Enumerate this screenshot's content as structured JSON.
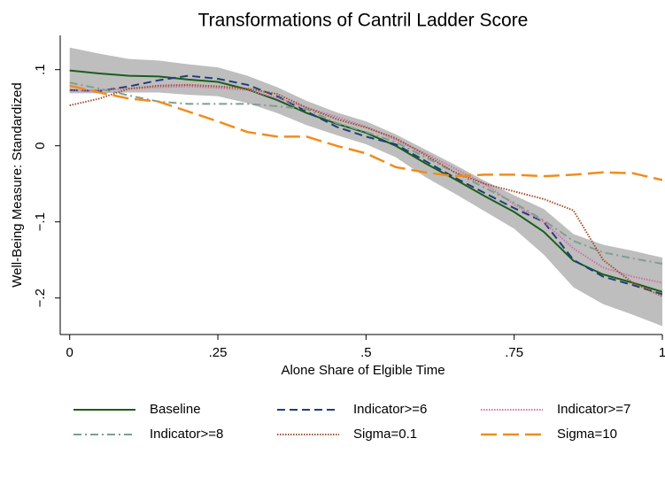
{
  "chart_data": {
    "type": "line",
    "title": "Transformations of Cantril Ladder Score",
    "x_label": "Alone Share of Elgible Time",
    "y_label": "Well-Being Measure: Standardized",
    "xlim": [
      -0.016,
      1.0
    ],
    "ylim": [
      -0.248,
      0.145
    ],
    "xticks": [
      0,
      {
        "value": 0.25,
        "label": ".25"
      },
      {
        "value": 0.5,
        "label": ".5"
      },
      {
        "value": 0.75,
        "label": ".75"
      },
      1
    ],
    "yticks": [
      {
        "value": 0.1,
        "label": ".1"
      },
      0,
      {
        "value": -0.1,
        "label": "−.1"
      },
      {
        "value": -0.2,
        "label": "−.2"
      }
    ],
    "x": [
      0,
      0.05,
      0.1,
      0.15,
      0.2,
      0.25,
      0.3,
      0.35,
      0.4,
      0.45,
      0.5,
      0.55,
      0.6,
      0.65,
      0.7,
      0.75,
      0.8,
      0.85,
      0.9,
      0.95,
      1
    ],
    "band": {
      "color": "#bebebe",
      "upper": [
        0.129,
        0.121,
        0.114,
        0.112,
        0.107,
        0.103,
        0.092,
        0.077,
        0.059,
        0.044,
        0.032,
        0.015,
        -0.005,
        -0.025,
        -0.046,
        -0.065,
        -0.083,
        -0.116,
        -0.13,
        -0.138,
        -0.147
      ],
      "lower": [
        0.069,
        0.069,
        0.07,
        0.07,
        0.067,
        0.065,
        0.056,
        0.043,
        0.027,
        0.014,
        0.002,
        -0.015,
        -0.041,
        -0.063,
        -0.086,
        -0.109,
        -0.143,
        -0.186,
        -0.208,
        -0.222,
        -0.237
      ]
    },
    "series": [
      {
        "name": "Baseline",
        "color": "#1a5e1a",
        "style": "solid",
        "values": [
          0.099,
          0.095,
          0.092,
          0.091,
          0.087,
          0.084,
          0.074,
          0.06,
          0.043,
          0.029,
          0.017,
          0,
          -0.023,
          -0.044,
          -0.066,
          -0.087,
          -0.113,
          -0.151,
          -0.169,
          -0.18,
          -0.192
        ]
      },
      {
        "name": "Indicator>=6",
        "color": "#1f3f7a",
        "style": "dashed",
        "values": [
          0.073,
          0.072,
          0.078,
          0.086,
          0.092,
          0.088,
          0.08,
          0.065,
          0.045,
          0.025,
          0.012,
          0.002,
          -0.02,
          -0.042,
          -0.062,
          -0.082,
          -0.1,
          -0.15,
          -0.172,
          -0.183,
          -0.195
        ]
      },
      {
        "name": "Indicator>=7",
        "color": "#d070a8",
        "style": "dotted",
        "values": [
          0.072,
          0.073,
          0.075,
          0.077,
          0.078,
          0.076,
          0.073,
          0.063,
          0.05,
          0.038,
          0.025,
          0.008,
          -0.01,
          -0.03,
          -0.05,
          -0.077,
          -0.1,
          -0.135,
          -0.16,
          -0.172,
          -0.18
        ]
      },
      {
        "name": "Indicator>=8",
        "color": "#7f9f8f",
        "style": "dash-dot",
        "values": [
          0.083,
          0.075,
          0.066,
          0.058,
          0.055,
          0.055,
          0.055,
          0.052,
          0.048,
          0.03,
          0.018,
          0.005,
          -0.015,
          -0.035,
          -0.055,
          -0.075,
          -0.098,
          -0.125,
          -0.14,
          -0.148,
          -0.155
        ]
      },
      {
        "name": "Sigma=0.1",
        "color": "#a0522d",
        "style": "dotted",
        "values": [
          0.053,
          0.062,
          0.075,
          0.079,
          0.08,
          0.078,
          0.075,
          0.068,
          0.05,
          0.035,
          0.024,
          0.01,
          -0.012,
          -0.035,
          -0.05,
          -0.06,
          -0.07,
          -0.085,
          -0.15,
          -0.18,
          -0.198
        ]
      },
      {
        "name": "Sigma=10",
        "color": "#f08c1e",
        "style": "long-dash",
        "values": [
          0.079,
          0.07,
          0.062,
          0.058,
          0.045,
          0.032,
          0.018,
          0.012,
          0.012,
          0,
          -0.01,
          -0.028,
          -0.035,
          -0.04,
          -0.038,
          -0.038,
          -0.04,
          -0.038,
          -0.035,
          -0.036,
          -0.045
        ]
      }
    ]
  }
}
